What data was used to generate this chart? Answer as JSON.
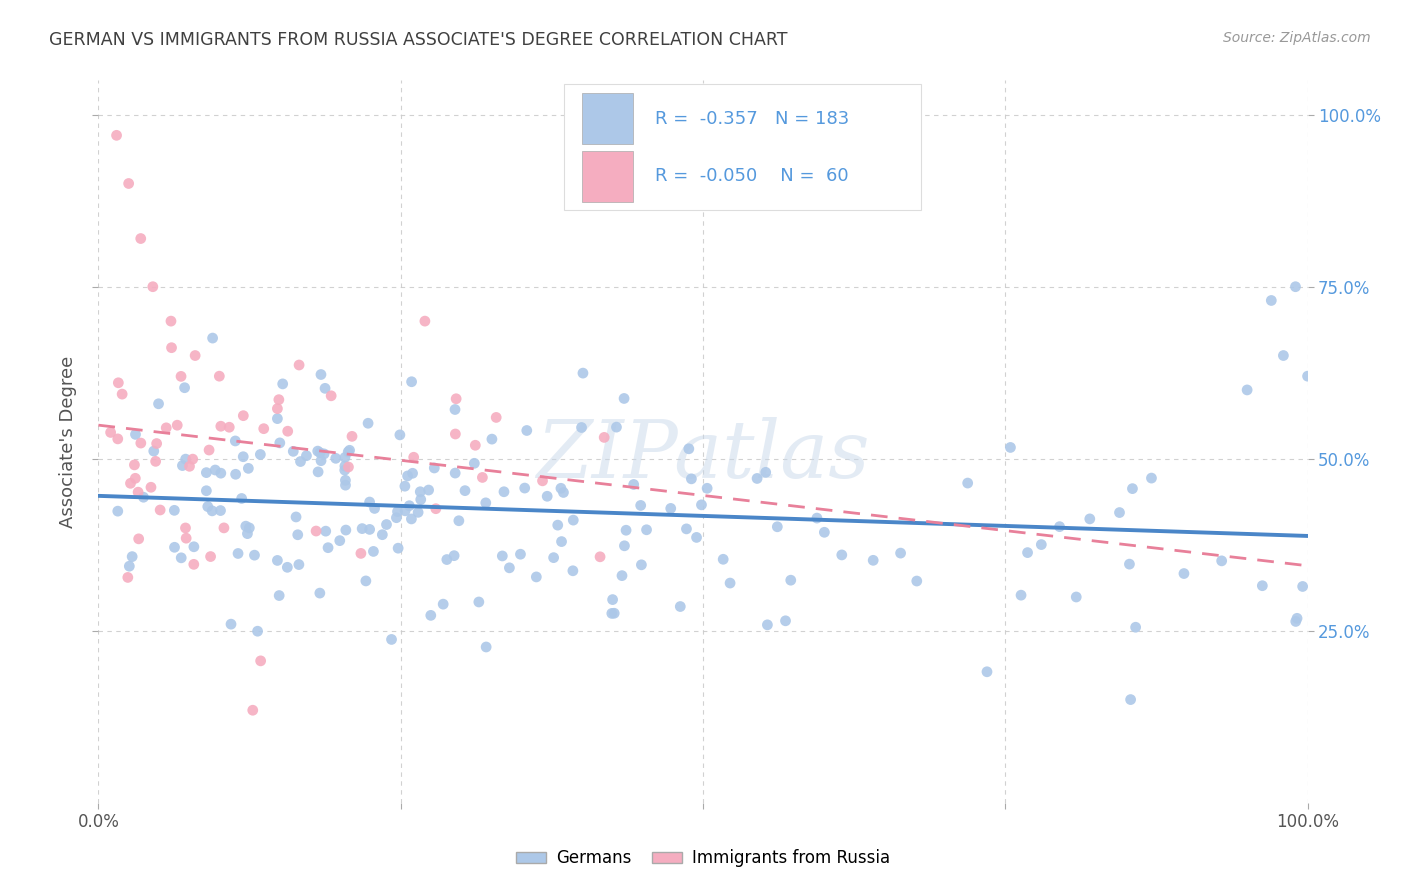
{
  "title": "GERMAN VS IMMIGRANTS FROM RUSSIA ASSOCIATE'S DEGREE CORRELATION CHART",
  "source_text": "Source: ZipAtlas.com",
  "ylabel": "Associate's Degree",
  "legend_r_blue": "-0.357",
  "legend_n_blue": "183",
  "legend_r_pink": "-0.050",
  "legend_n_pink": "60",
  "blue_color": "#adc8e8",
  "pink_color": "#f5adc0",
  "blue_line_color": "#4a86c8",
  "pink_line_color": "#e8809a",
  "background_color": "#ffffff",
  "grid_color": "#cccccc",
  "title_color": "#404040",
  "axis_color": "#555555",
  "right_tick_color": "#5599dd",
  "source_color": "#999999",
  "watermark_color": "#c8d8ea",
  "blue_intercept": 0.47,
  "blue_slope": -0.12,
  "pink_intercept": 0.5,
  "pink_slope": -0.005,
  "seed": 77
}
